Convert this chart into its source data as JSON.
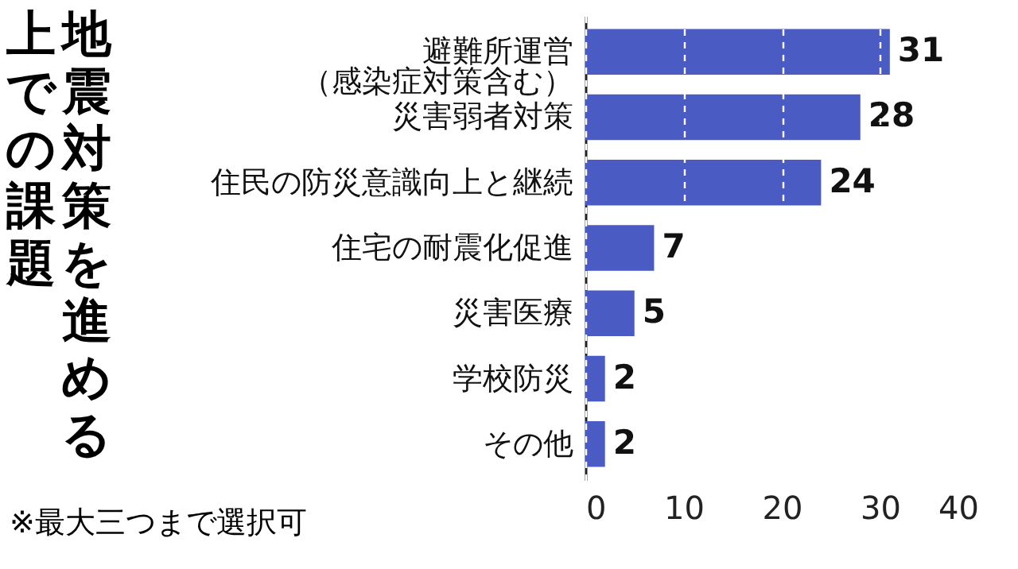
{
  "chart_data": {
    "type": "bar",
    "orientation": "horizontal",
    "title": "地震対策を進める上での課題",
    "categories": [
      "避難所運営（感染症対策含む）",
      "災害弱者対策",
      "住民の防災意識向上と継続",
      "住宅の耐震化促進",
      "災害医療",
      "学校防災",
      "その他"
    ],
    "values": [
      31,
      28,
      24,
      7,
      5,
      2,
      2
    ],
    "color": "#4a5bc4",
    "data_labels": true,
    "xlim": [
      0,
      40
    ],
    "xticks": [
      0,
      10,
      20,
      30,
      40
    ],
    "grid": "x",
    "annotations": [
      "※最大三つまで選択可"
    ]
  }
}
